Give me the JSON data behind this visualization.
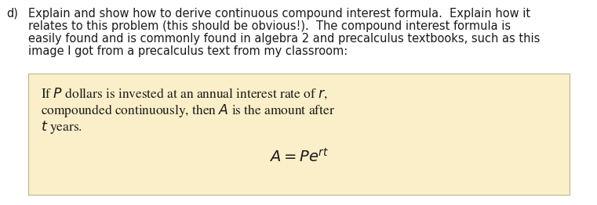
{
  "bg_color": "#ffffff",
  "box_bg_color": "#faefc8",
  "box_edge_color": "#b8b890",
  "label_d": "d)",
  "para_text_lines": [
    "Explain and show how to derive continuous compound interest formula.  Explain how it",
    "relates to this problem (this should be obvious!).  The compound interest formula is",
    "easily found and is commonly found in algebra 2 and precalculus textbooks, such as this",
    "image I got from a precalculus text from my classroom:"
  ],
  "box_line1": "If $P$ dollars is invested at an annual interest rate of $r$,",
  "box_line2": "compounded continuously, then $A$ is the amount after",
  "box_line3": "$t$ years.",
  "box_formula": "$A = Pe^{rt}$",
  "text_color": "#1a1a1a",
  "font_size_para": 10.5,
  "font_size_box": 12.5,
  "font_size_formula": 14.0,
  "fig_width": 7.61,
  "fig_height": 2.62,
  "dpi": 100
}
